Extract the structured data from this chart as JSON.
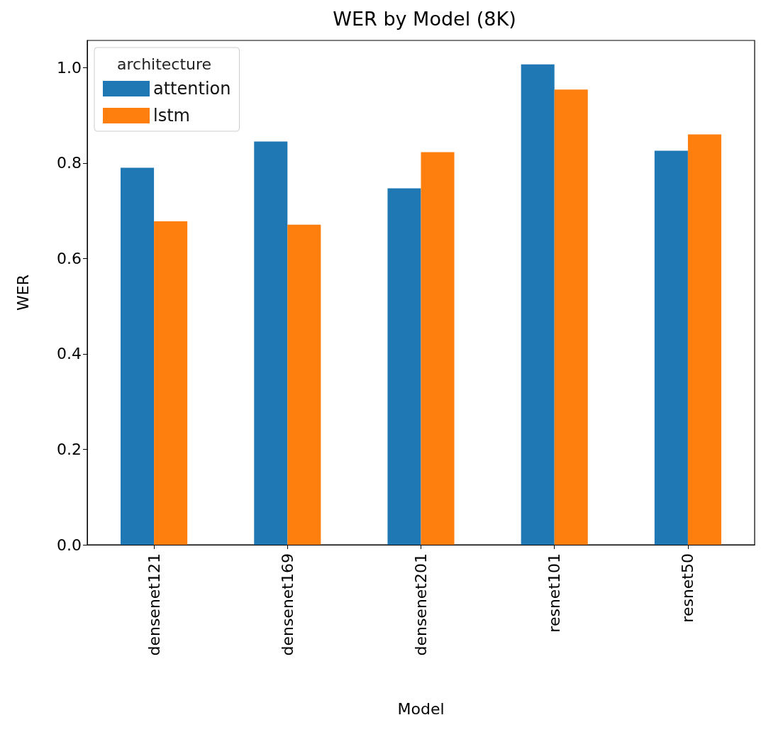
{
  "chart_data": {
    "type": "bar",
    "title": "WER by Model (8K)",
    "xlabel": "Model",
    "ylabel": "WER",
    "legend_title": "architecture",
    "categories": [
      "densenet121",
      "densenet169",
      "densenet201",
      "resnet101",
      "resnet50"
    ],
    "series": [
      {
        "name": "attention",
        "color": "#1f77b4",
        "values": [
          0.79,
          0.845,
          0.747,
          1.007,
          0.826
        ]
      },
      {
        "name": "lstm",
        "color": "#ff7f0e",
        "values": [
          0.678,
          0.671,
          0.823,
          0.954,
          0.86
        ]
      }
    ],
    "ylim": [
      0,
      1.057
    ],
    "yticks": [
      {
        "value": 0,
        "label": "0.0"
      },
      {
        "value": 0.2,
        "label": "0.2"
      },
      {
        "value": 0.4,
        "label": "0.4"
      },
      {
        "value": 0.6,
        "label": "0.6"
      },
      {
        "value": 0.8,
        "label": "0.8"
      },
      {
        "value": 1.0,
        "label": "1.0"
      }
    ],
    "grid": false,
    "legend": "top left"
  }
}
